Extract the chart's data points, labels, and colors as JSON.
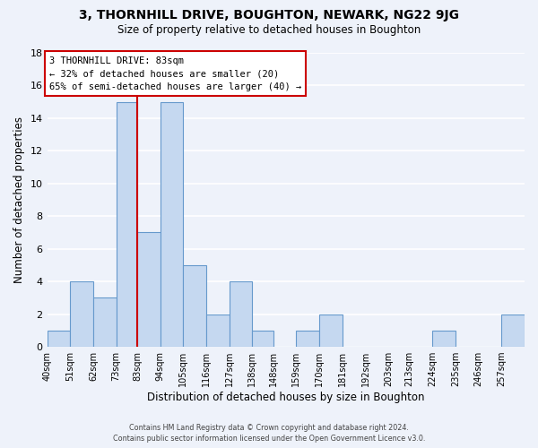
{
  "title": "3, THORNHILL DRIVE, BOUGHTON, NEWARK, NG22 9JG",
  "subtitle": "Size of property relative to detached houses in Boughton",
  "xlabel": "Distribution of detached houses by size in Boughton",
  "ylabel": "Number of detached properties",
  "footer_line1": "Contains HM Land Registry data © Crown copyright and database right 2024.",
  "footer_line2": "Contains public sector information licensed under the Open Government Licence v3.0.",
  "bin_labels": [
    "40sqm",
    "51sqm",
    "62sqm",
    "73sqm",
    "83sqm",
    "94sqm",
    "105sqm",
    "116sqm",
    "127sqm",
    "138sqm",
    "148sqm",
    "159sqm",
    "170sqm",
    "181sqm",
    "192sqm",
    "203sqm",
    "213sqm",
    "224sqm",
    "235sqm",
    "246sqm",
    "257sqm"
  ],
  "bin_edges": [
    40,
    51,
    62,
    73,
    83,
    94,
    105,
    116,
    127,
    138,
    148,
    159,
    170,
    181,
    192,
    203,
    213,
    224,
    235,
    246,
    257,
    268
  ],
  "counts": [
    1,
    4,
    3,
    15,
    7,
    15,
    5,
    2,
    4,
    1,
    0,
    1,
    2,
    0,
    0,
    0,
    0,
    1,
    0,
    0,
    2
  ],
  "bar_color": "#c5d8f0",
  "bar_edge_color": "#6699cc",
  "property_label": "3 THORNHILL DRIVE: 83sqm",
  "annotation_line1": "← 32% of detached houses are smaller (20)",
  "annotation_line2": "65% of semi-detached houses are larger (40) →",
  "vline_color": "#cc0000",
  "vline_x": 83,
  "annotation_box_color": "#ffffff",
  "annotation_box_edge": "#cc0000",
  "ylim": [
    0,
    18
  ],
  "yticks": [
    0,
    2,
    4,
    6,
    8,
    10,
    12,
    14,
    16,
    18
  ],
  "background_color": "#eef2fa",
  "grid_color": "#ffffff"
}
